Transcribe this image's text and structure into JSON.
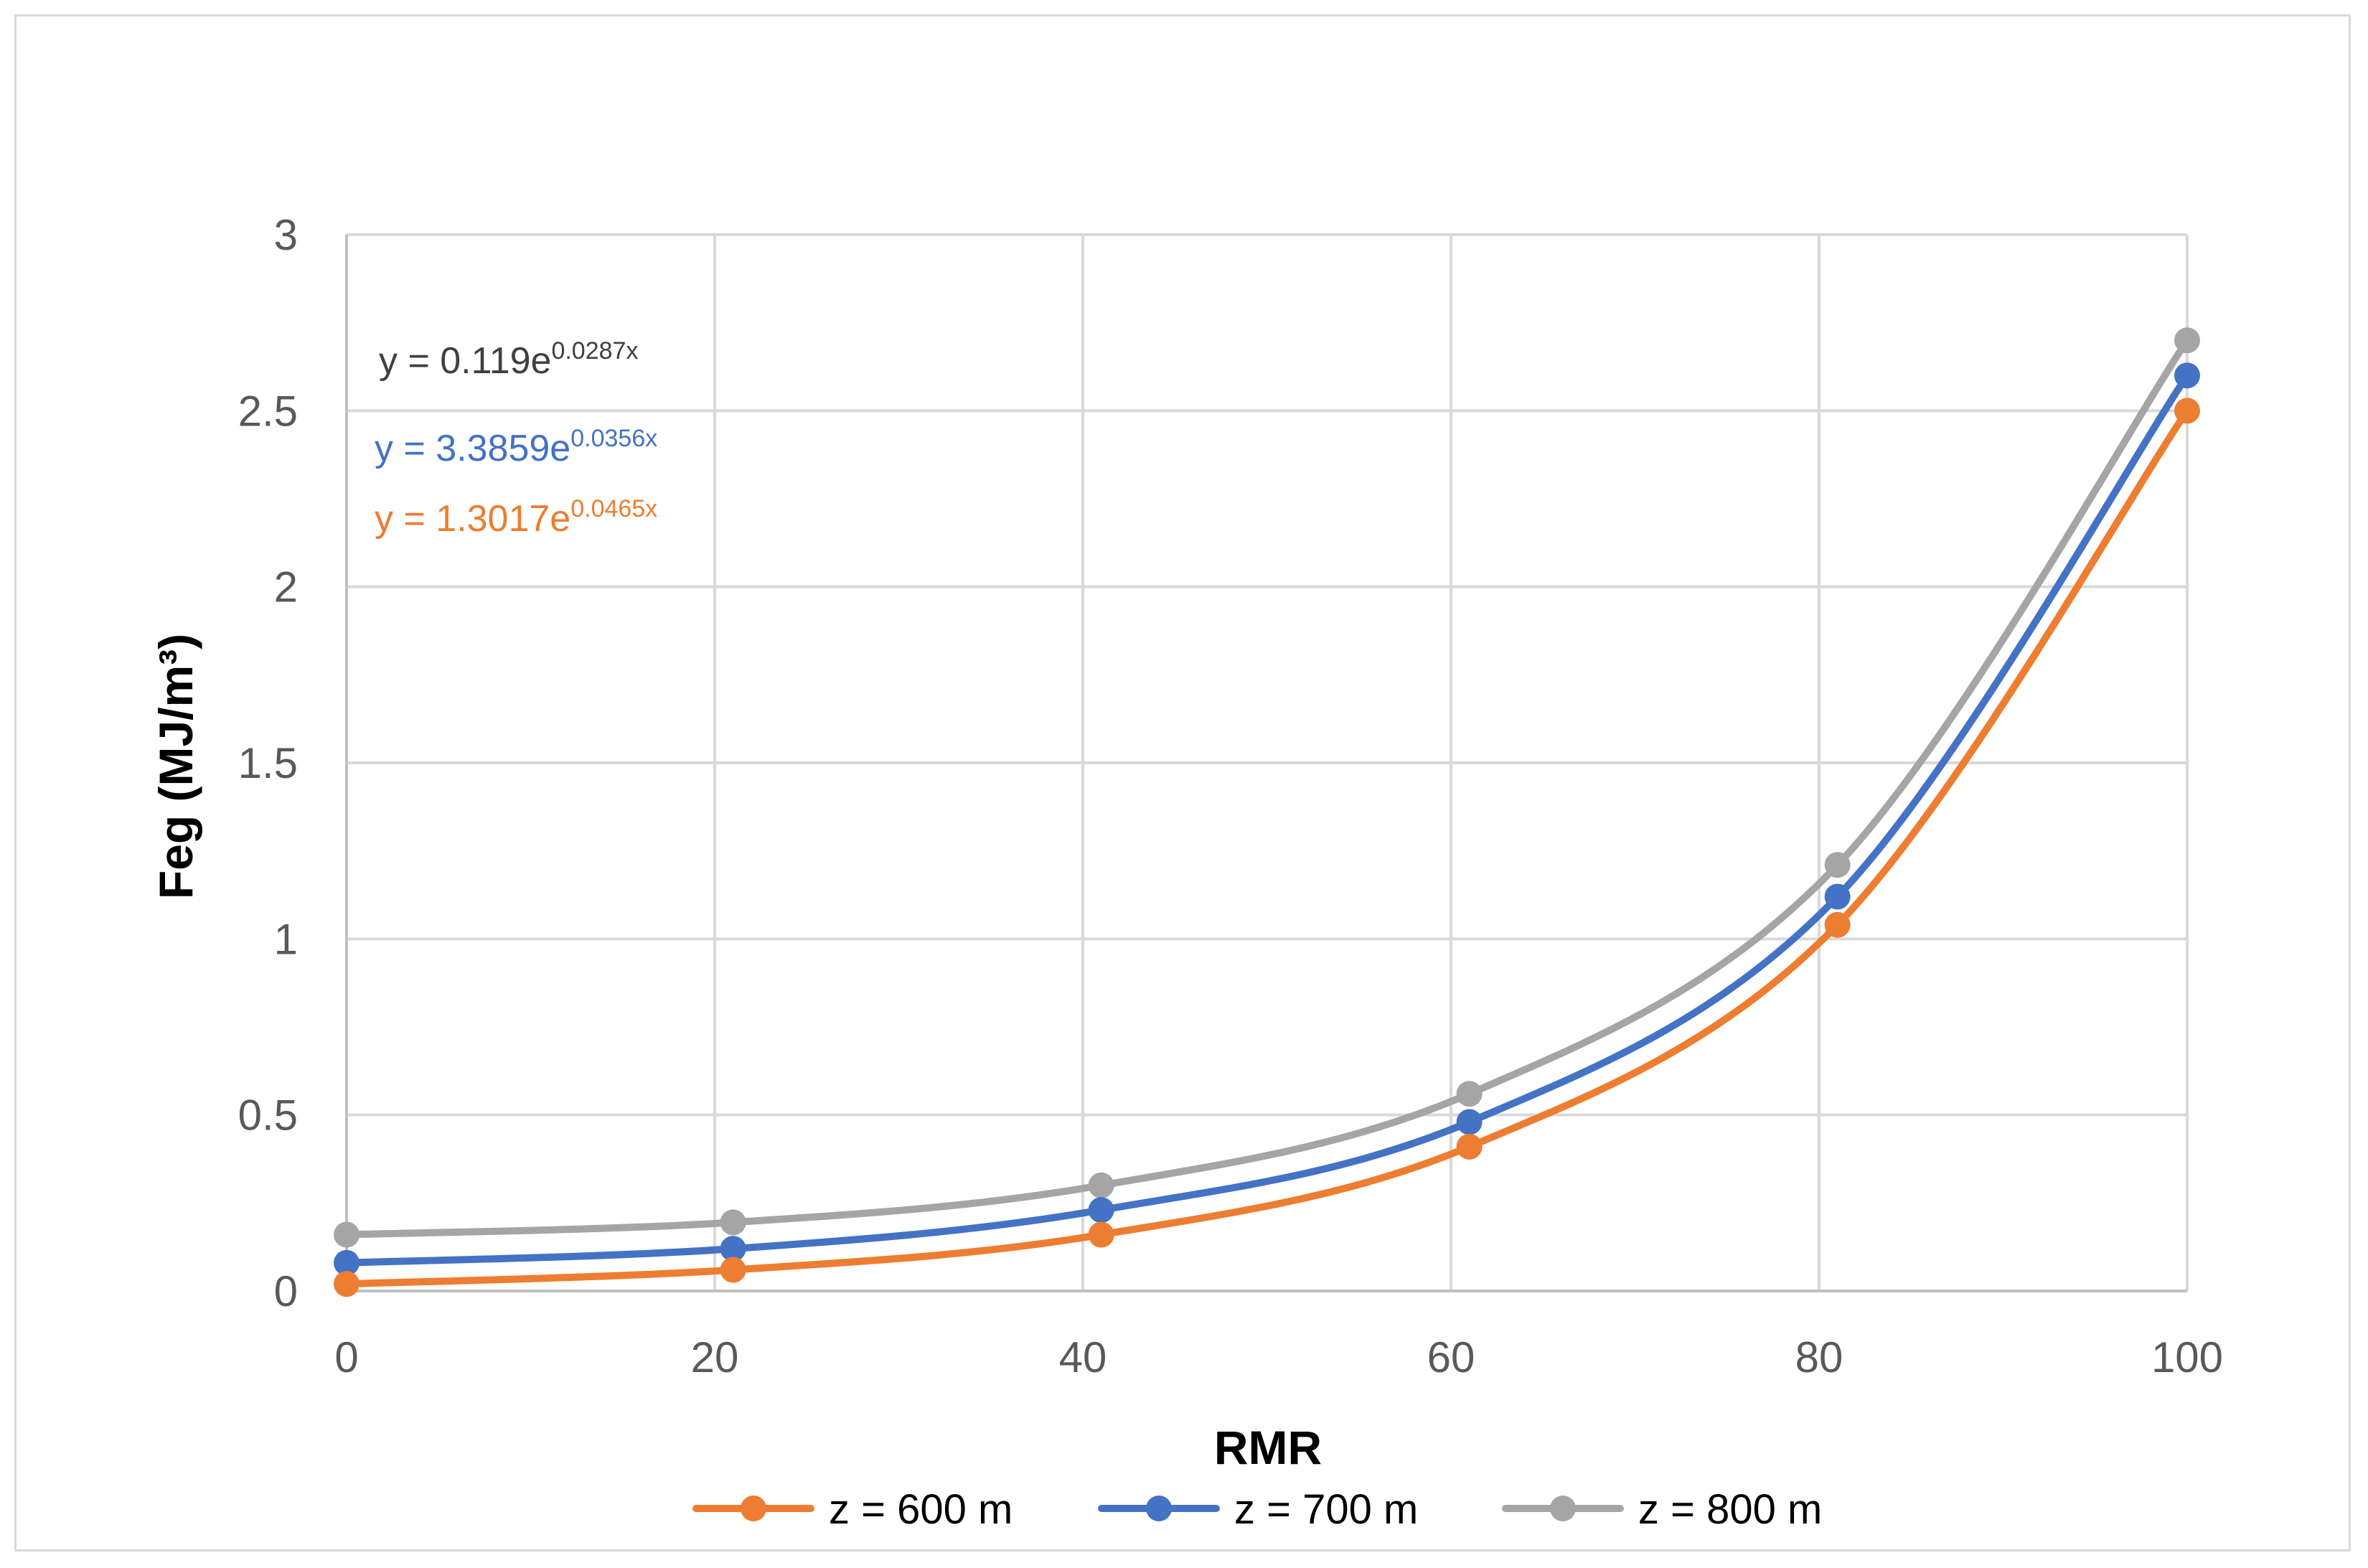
{
  "chart_data": {
    "type": "line",
    "smooth": true,
    "title": "",
    "xlabel": "RMR",
    "ylabel": "Feg (MJ/m³)",
    "xlim": [
      0,
      100
    ],
    "ylim": [
      0,
      3
    ],
    "x_ticks": [
      0,
      20,
      40,
      60,
      80,
      100
    ],
    "y_ticks": [
      0,
      0.5,
      1,
      1.5,
      2,
      2.5,
      3
    ],
    "y_tick_labels": [
      "0",
      "0.5",
      "1",
      "1.5",
      "2",
      "2.5",
      "3"
    ],
    "grid": true,
    "legend_position": "bottom",
    "x": [
      0,
      21,
      41,
      61,
      81,
      100
    ],
    "series": [
      {
        "name": "z = 600 m",
        "color": "#ED7D31",
        "values": [
          0.02,
          0.06,
          0.16,
          0.41,
          1.04,
          2.5
        ]
      },
      {
        "name": "z = 700 m",
        "color": "#4472C4",
        "values": [
          0.08,
          0.12,
          0.23,
          0.48,
          1.12,
          2.6
        ]
      },
      {
        "name": "z = 800 m",
        "color": "#A5A5A5",
        "values": [
          0.16,
          0.195,
          0.3,
          0.56,
          1.21,
          2.7
        ]
      }
    ],
    "annotations": [
      {
        "base": "y = 0.119e",
        "exponent": "0.0287x",
        "color": "#404040"
      },
      {
        "base": "y = 3.3859e",
        "exponent": "0.0356x",
        "color": "#4472C4"
      },
      {
        "base": "y = 1.3017e",
        "exponent": "0.0465x",
        "color": "#ED7D31"
      }
    ]
  }
}
